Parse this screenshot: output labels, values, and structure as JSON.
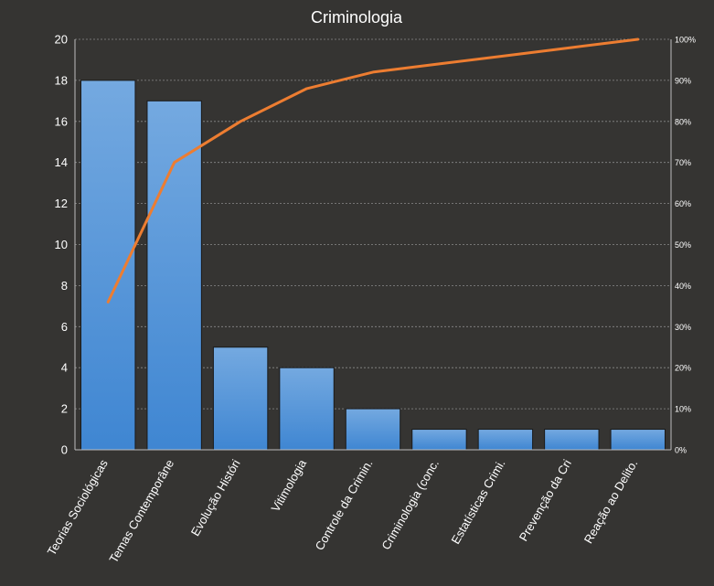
{
  "chart_data": {
    "type": "bar",
    "title": "Criminologia",
    "categories": [
      "Teorias Sociológicas",
      "Temas Contemporâne",
      "Evolução Históri",
      "Vitimologia",
      "Controle da Crimin.",
      "Criminologia (conc.",
      "Estatísticas Crimi.",
      "Prevenção da Cri",
      "Reação ao Delito."
    ],
    "series": [
      {
        "type": "bar",
        "values": [
          18,
          17,
          5,
          4,
          2,
          1,
          1,
          1,
          1
        ],
        "color": "#4a90d9"
      },
      {
        "type": "line",
        "axis": "secondary",
        "values": [
          36,
          70,
          80,
          88,
          92,
          94,
          96,
          98,
          100
        ],
        "color": "#ed7d31"
      }
    ],
    "ylim": [
      0,
      20
    ],
    "yticks": [
      "0",
      "2",
      "4",
      "6",
      "8",
      "10",
      "12",
      "14",
      "16",
      "18",
      "20"
    ],
    "y2lim": [
      0,
      100
    ],
    "y2ticks": [
      "0%",
      "10%",
      "20%",
      "30%",
      "40%",
      "50%",
      "60%",
      "70%",
      "80%",
      "90%",
      "100%"
    ],
    "grid": true,
    "legend": "none",
    "colors": {
      "background": "#353432",
      "bar_top": "#74a9e0",
      "bar_bottom": "#3f86d2",
      "line": "#ed7d31"
    }
  }
}
